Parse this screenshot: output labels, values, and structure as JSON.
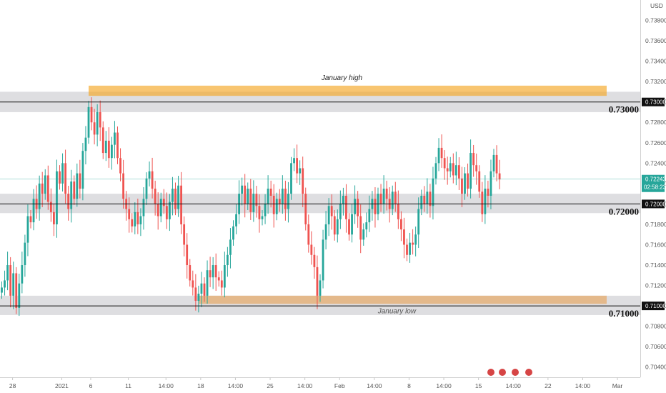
{
  "chart_data": {
    "type": "candlestick",
    "currency": "USD",
    "ylim": [
      0.703,
      0.74
    ],
    "x_ticks": [
      {
        "label": "28",
        "i": 2
      },
      {
        "label": "2021",
        "i": 19
      },
      {
        "label": "6",
        "i": 29
      },
      {
        "label": "11",
        "i": 42
      },
      {
        "label": "14:00",
        "i": 55
      },
      {
        "label": "18",
        "i": 67
      },
      {
        "label": "14:00",
        "i": 79
      },
      {
        "label": "25",
        "i": 91
      },
      {
        "label": "14:00",
        "i": 103
      },
      {
        "label": "Feb",
        "i": 115
      },
      {
        "label": "14:00",
        "i": 127
      },
      {
        "label": "8",
        "i": 139
      },
      {
        "label": "14:00",
        "i": 151
      },
      {
        "label": "15",
        "i": 163
      },
      {
        "label": "14:00",
        "i": 175
      },
      {
        "label": "22",
        "i": 187
      },
      {
        "label": "14:00",
        "i": 199
      },
      {
        "label": "Mar",
        "i": 211
      },
      {
        "label": "14:00",
        "i": 223
      }
    ],
    "y_ticks": [
      "0.70400",
      "0.70600",
      "0.70800",
      "0.71000",
      "0.71200",
      "0.71400",
      "0.71600",
      "0.71800",
      "0.72000",
      "0.72200",
      "0.72400",
      "0.72600",
      "0.72800",
      "0.73000",
      "0.73200",
      "0.73400",
      "0.73600",
      "0.73800"
    ],
    "levels": [
      {
        "label": "0.73000",
        "price": 0.73,
        "band": [
          0.729,
          0.731
        ]
      },
      {
        "label": "0.72000",
        "price": 0.72,
        "band": [
          0.7191,
          0.721
        ]
      },
      {
        "label": "0.71000",
        "price": 0.71,
        "band": [
          0.7091,
          0.711
        ]
      }
    ],
    "zones": [
      {
        "name": "January high",
        "from_i": 30,
        "to_i": 209,
        "low": 0.7306,
        "high": 0.7316,
        "color": "#f5a623"
      },
      {
        "name": "January low",
        "from_i": 68,
        "to_i": 209,
        "low": 0.7102,
        "high": 0.711,
        "color": "#e6a45c"
      }
    ],
    "last_price": {
      "label": "0.72243",
      "value": 0.72243,
      "countdown": "02:58:23"
    },
    "closes": [
      0.7118,
      0.7125,
      0.714,
      0.711,
      0.7132,
      0.7098,
      0.7122,
      0.714,
      0.7162,
      0.7188,
      0.7182,
      0.7205,
      0.7195,
      0.722,
      0.721,
      0.7228,
      0.7202,
      0.7192,
      0.718,
      0.7232,
      0.722,
      0.724,
      0.721,
      0.7195,
      0.7222,
      0.7205,
      0.723,
      0.7215,
      0.7252,
      0.7265,
      0.7295,
      0.728,
      0.7268,
      0.729,
      0.7275,
      0.725,
      0.7262,
      0.7245,
      0.7258,
      0.727,
      0.7245,
      0.723,
      0.7205,
      0.7195,
      0.7185,
      0.7178,
      0.7192,
      0.718,
      0.7188,
      0.7205,
      0.7225,
      0.7232,
      0.7215,
      0.72,
      0.7188,
      0.7205,
      0.7198,
      0.7185,
      0.7202,
      0.7215,
      0.7195,
      0.7218,
      0.718,
      0.716,
      0.714,
      0.7125,
      0.7118,
      0.7105,
      0.7112,
      0.7122,
      0.711,
      0.7135,
      0.7128,
      0.714,
      0.7128,
      0.7125,
      0.7118,
      0.714,
      0.715,
      0.7165,
      0.7178,
      0.719,
      0.721,
      0.7218,
      0.72,
      0.7215,
      0.7192,
      0.721,
      0.7198,
      0.7185,
      0.7188,
      0.72,
      0.7215,
      0.7208,
      0.719,
      0.7205,
      0.72,
      0.7215,
      0.7195,
      0.721,
      0.724,
      0.7245,
      0.723,
      0.7235,
      0.721,
      0.718,
      0.716,
      0.715,
      0.7138,
      0.711,
      0.7125,
      0.7165,
      0.718,
      0.7198,
      0.7188,
      0.717,
      0.7185,
      0.72,
      0.7208,
      0.7185,
      0.717,
      0.719,
      0.7205,
      0.7188,
      0.7165,
      0.7175,
      0.7182,
      0.7195,
      0.7205,
      0.719,
      0.721,
      0.72,
      0.7215,
      0.7205,
      0.7195,
      0.7212,
      0.72,
      0.7185,
      0.7175,
      0.716,
      0.715,
      0.7162,
      0.716,
      0.717,
      0.7195,
      0.7208,
      0.72,
      0.7212,
      0.7198,
      0.7225,
      0.724,
      0.7255,
      0.7245,
      0.7235,
      0.7232,
      0.724,
      0.7228,
      0.7238,
      0.7225,
      0.721,
      0.723,
      0.7215,
      0.725,
      0.7238,
      0.7232,
      0.7212,
      0.719,
      0.7215,
      0.7208,
      0.7232,
      0.7248,
      0.723,
      0.7224
    ]
  }
}
